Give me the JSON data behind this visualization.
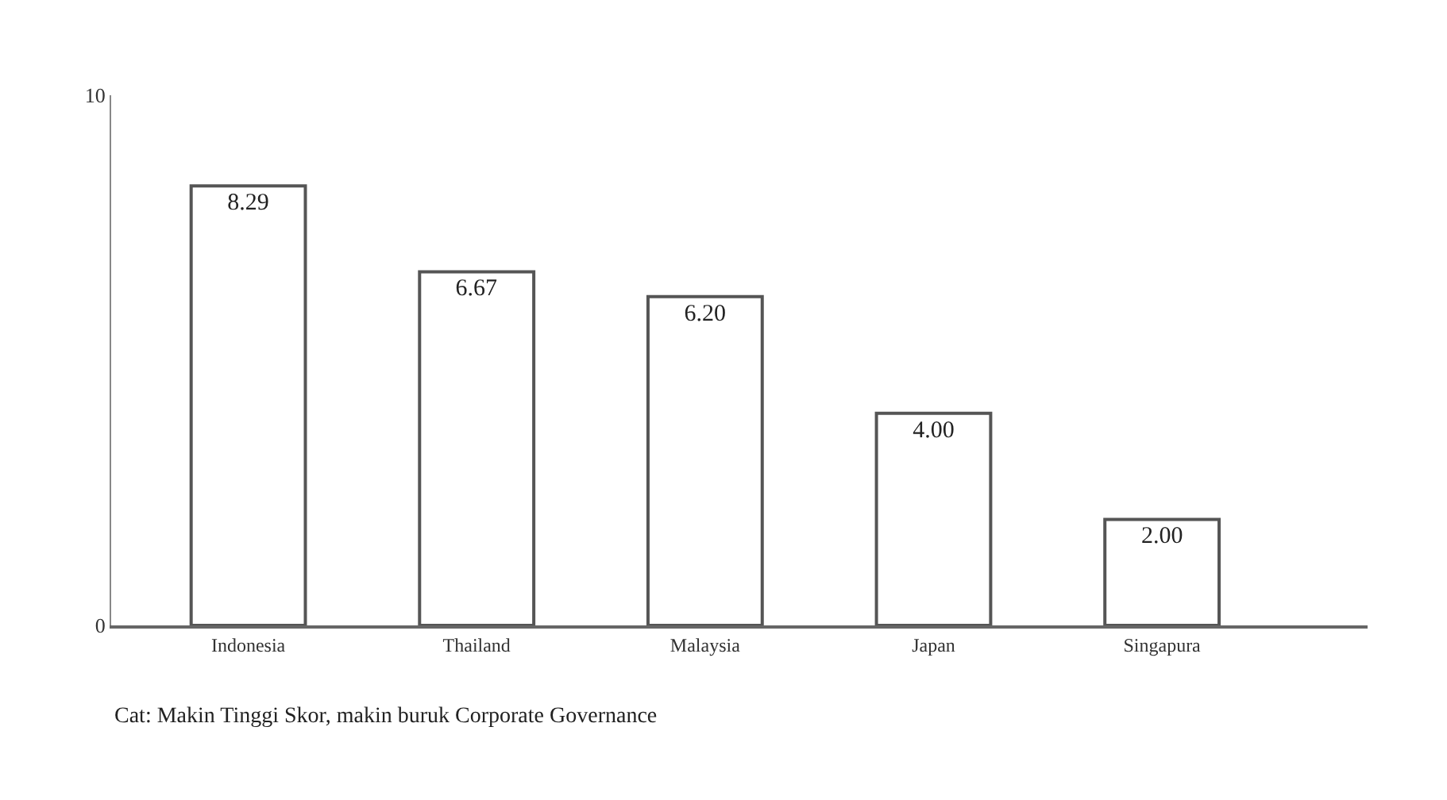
{
  "chart_data": {
    "type": "bar",
    "categories": [
      "Indonesia",
      "Thailand",
      "Malaysia",
      "Japan",
      "Singapura"
    ],
    "values": [
      8.29,
      6.67,
      6.2,
      4.0,
      2.0
    ],
    "value_labels": [
      "8.29",
      "6.67",
      "6.20",
      "4.00",
      "2.00"
    ],
    "color": "#ffffff",
    "ylim": [
      0,
      10
    ],
    "yticks": [
      0,
      10
    ],
    "legend": false,
    "annotations": [
      "Cat: Makin Tinggi Skor, makin buruk Corporate Governance"
    ]
  }
}
